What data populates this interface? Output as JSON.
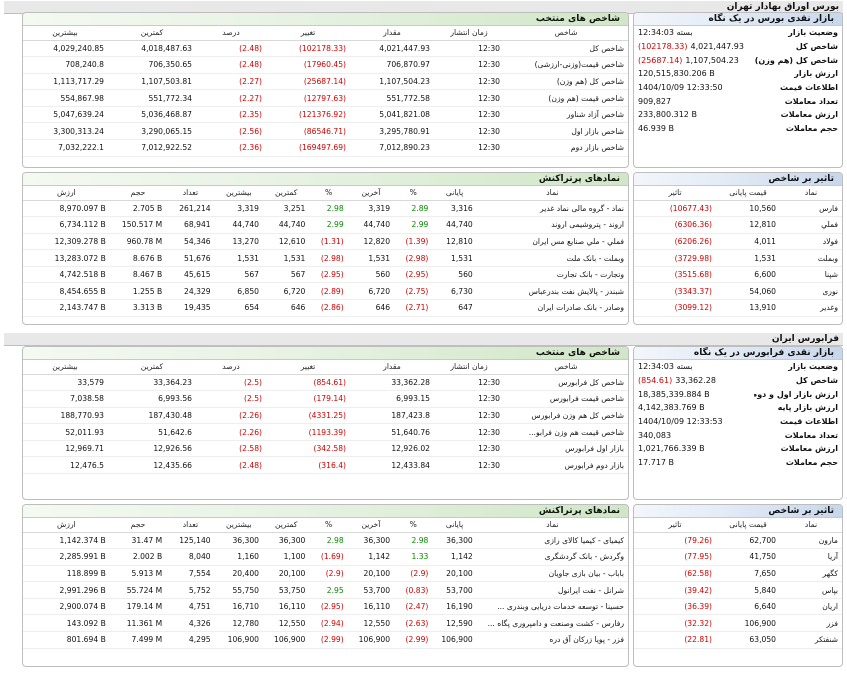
{
  "page_title": "بورس اوراق بهادار تهران",
  "colors": {
    "negative": "#d10000",
    "positive": "#0a8a00",
    "header_green": "#cfe7c6",
    "header_blue": "#c7d7ec"
  },
  "tse": {
    "market_panel": {
      "title": "بازار نقدی بورس در یک نگاه",
      "rows": [
        {
          "label": "وضعیت بازار",
          "value": "بسته 12:34:03",
          "change": ""
        },
        {
          "label": "شاخص کل",
          "value": "4,021,447.93",
          "change": "(102178.33)"
        },
        {
          "label": "شاخص کل (هم وزن)",
          "value": "1,107,504.23",
          "change": "(25687.14)"
        },
        {
          "label": "ارزش بازار",
          "value": "120,515,830.206 B",
          "change": ""
        },
        {
          "label": "اطلاعات قیمت",
          "value": "1404/10/09 12:33:50",
          "change": ""
        },
        {
          "label": "تعداد معاملات",
          "value": "909,827",
          "change": ""
        },
        {
          "label": "ارزش معاملات",
          "value": "233,800.312 B",
          "change": ""
        },
        {
          "label": "حجم معاملات",
          "value": "46.939 B",
          "change": ""
        }
      ]
    },
    "indices": {
      "title": "شاخص های منتخب",
      "columns": [
        "شاخص",
        "زمان انتشار",
        "مقدار",
        "تغییر",
        "درصد",
        "کمترین",
        "بیشترین"
      ],
      "rows": [
        [
          "شاخص کل",
          "12:30",
          "4,021,447.93",
          "(102178.33)",
          "(2.48)",
          "4,018,487.63",
          "4,029,240.85"
        ],
        [
          "شاخص قیمت(وزنی-ارزشی)",
          "12:30",
          "706,870.97",
          "(17960.45)",
          "(2.48)",
          "706,350.65",
          "708,240.8"
        ],
        [
          "شاخص کل (هم وزن)",
          "12:30",
          "1,107,504.23",
          "(25687.14)",
          "(2.27)",
          "1,107,503.81",
          "1,113,717.29"
        ],
        [
          "شاخص قیمت (هم وزن)",
          "12:30",
          "551,772.58",
          "(12797.63)",
          "(2.27)",
          "551,772.34",
          "554,867.98"
        ],
        [
          "شاخص آزاد شناور",
          "12:30",
          "5,041,821.08",
          "(121376.92)",
          "(2.35)",
          "5,036,468.87",
          "5,047,639.24"
        ],
        [
          "شاخص بازار اول",
          "12:30",
          "3,295,780.91",
          "(86546.71)",
          "(2.56)",
          "3,290,065.15",
          "3,300,313.24"
        ],
        [
          "شاخص بازار دوم",
          "12:30",
          "7,012,890.23",
          "(169497.69)",
          "(2.36)",
          "7,012,922.52",
          "7,032,222.1"
        ]
      ]
    },
    "impact": {
      "title": "تاثیر بر شاخص",
      "columns": [
        "نماد",
        "قیمت پایانی",
        "تاثیر"
      ],
      "rows": [
        [
          "فارس",
          "10,560",
          "(10677.43)"
        ],
        [
          "فملي",
          "12,810",
          "(6306.36)"
        ],
        [
          "فولاد",
          "4,011",
          "(6206.26)"
        ],
        [
          "وبملت",
          "1,531",
          "(3729.98)"
        ],
        [
          "شپنا",
          "6,600",
          "(3515.68)"
        ],
        [
          "نوری",
          "54,060",
          "(3343.37)"
        ],
        [
          "وغدير",
          "13,910",
          "(3099.12)"
        ]
      ]
    },
    "active": {
      "title": "نمادهای پرتراکنش",
      "columns": [
        "نماد",
        "پایانی",
        "%",
        "آخرین",
        "%",
        "کمترین",
        "بیشترین",
        "تعداد",
        "حجم",
        "ارزش"
      ],
      "rows": [
        [
          "نماد - گروه مالی نماد غدیر",
          "3,316",
          "2.89",
          "3,319",
          "2.98",
          "3,251",
          "3,319",
          "261,214",
          "2.705 B",
          "8,970.097 B"
        ],
        [
          "اروند - پتروشیمی اروند",
          "44,740",
          "2.99",
          "44,740",
          "2.99",
          "44,740",
          "44,740",
          "68,941",
          "150.517 M",
          "6,734.112 B"
        ],
        [
          "فملي - ملي صنايع مس ايران",
          "12,810",
          "(1.39)",
          "12,820",
          "(1.31)",
          "12,610",
          "13,270",
          "54,346",
          "960.78 M",
          "12,309.278 B"
        ],
        [
          "وبملت - بانک ملت",
          "1,531",
          "(2.98)",
          "1,531",
          "(2.98)",
          "1,531",
          "1,531",
          "51,676",
          "8.676 B",
          "13,283.072 B"
        ],
        [
          "وتجارت - بانک تجارت",
          "560",
          "(2.95)",
          "560",
          "(2.95)",
          "567",
          "567",
          "45,615",
          "8.467 B",
          "4,742.518 B"
        ],
        [
          "شبندر - پالايش نفت بندرعباس",
          "6,730",
          "(2.75)",
          "6,720",
          "(2.89)",
          "6,720",
          "6,850",
          "24,329",
          "1.255 B",
          "8,454.655 B"
        ],
        [
          "وصادر - بانک صادرات ايران",
          "647",
          "(2.71)",
          "646",
          "(2.86)",
          "646",
          "654",
          "19,435",
          "3.313 B",
          "2,143.747 B"
        ]
      ]
    }
  },
  "ifb_bar_title": "فرابورس ایران",
  "ifb": {
    "market_panel": {
      "title": "بازار نقدی فرابورس در یک نگاه",
      "rows": [
        {
          "label": "وضعیت بازار",
          "value": "بسته 12:34:03",
          "change": ""
        },
        {
          "label": "شاخص کل",
          "value": "33,362.28",
          "change": "(854.61)"
        },
        {
          "label": "ارزش بازار اول و دوم",
          "value": "18,385,339.884 B",
          "change": ""
        },
        {
          "label": "ارزش بازار پایه",
          "value": "4,142,383.769 B",
          "change": ""
        },
        {
          "label": "اطلاعات قیمت",
          "value": "1404/10/09 12:33:53",
          "change": ""
        },
        {
          "label": "تعداد معاملات",
          "value": "340,083",
          "change": ""
        },
        {
          "label": "ارزش معاملات",
          "value": "1,021,766.339 B",
          "change": ""
        },
        {
          "label": "حجم معاملات",
          "value": "17.717 B",
          "change": ""
        }
      ]
    },
    "indices": {
      "title": "شاخص های منتخب",
      "columns": [
        "شاخص",
        "زمان انتشار",
        "مقدار",
        "تغییر",
        "درصد",
        "کمترین",
        "بیشترین"
      ],
      "rows": [
        [
          "شاخص کل فرابورس",
          "12:30",
          "33,362.28",
          "(854.61)",
          "(2.5)",
          "33,364.23",
          "33,579"
        ],
        [
          "شاخص قیمت فرابورس",
          "12:30",
          "6,993.15",
          "(179.14)",
          "(2.5)",
          "6,993.56",
          "7,038.58"
        ],
        [
          "شاخص کل هم وزن فرابورس",
          "12:30",
          "187,423.8",
          "(4331.25)",
          "(2.26)",
          "187,430.48",
          "188,770.93"
        ],
        [
          "شاخص قیمت هم وزن فرابو...",
          "12:30",
          "51,640.76",
          "(1193.39)",
          "(2.26)",
          "51,642.6",
          "52,011.93"
        ],
        [
          "بازار اول فرابورس",
          "12:30",
          "12,926.02",
          "(342.58)",
          "(2.58)",
          "12,926.56",
          "12,969.71"
        ],
        [
          "بازار دوم فرابورس",
          "12:30",
          "12,433.84",
          "(316.4)",
          "(2.48)",
          "12,435.66",
          "12,476.5"
        ]
      ]
    },
    "impact": {
      "title": "تاثیر بر شاخص",
      "columns": [
        "نماد",
        "قیمت پایانی",
        "تاثیر"
      ],
      "rows": [
        [
          "مارون",
          "62,700",
          "(79.26)"
        ],
        [
          "آريا",
          "41,750",
          "(77.95)"
        ],
        [
          "کگهر",
          "7,650",
          "(62.58)"
        ],
        [
          "بپاس",
          "5,840",
          "(39.42)"
        ],
        [
          "اريان",
          "6,640",
          "(36.39)"
        ],
        [
          "فزر",
          "106,900",
          "(32.32)"
        ],
        [
          "شنفتکر",
          "63,050",
          "(22.81)"
        ]
      ]
    },
    "active": {
      "title": "نمادهای پرتراکنش",
      "columns": [
        "نماد",
        "پایانی",
        "%",
        "آخرین",
        "%",
        "کمترین",
        "بیشترین",
        "تعداد",
        "حجم",
        "ارزش"
      ],
      "rows": [
        [
          "کیمیای - کیمیا کالای رازی",
          "36,300",
          "2.98",
          "36,300",
          "2.98",
          "36,300",
          "36,300",
          "125,140",
          "31.47 M",
          "1,142.374 B"
        ],
        [
          "وگردش - بانک گردشگری",
          "1,142",
          "1.33",
          "1,142",
          "(1.69)",
          "1,100",
          "1,160",
          "8,040",
          "2.002 B",
          "2,285.991 B"
        ],
        [
          "باباب - بیان بازی جاویان",
          "20,100",
          "(2.9)",
          "20,100",
          "(2.9)",
          "20,100",
          "20,400",
          "7,554",
          "5.913 M",
          "118.899 B"
        ],
        [
          "شرانل - نفت ایرانول",
          "53,700",
          "(0.83)",
          "53,700",
          "2.95",
          "53,750",
          "55,750",
          "5,752",
          "55.724 M",
          "2,991.296 B"
        ],
        [
          "حسینا - توسعه خدمات دریایی وبندری ...",
          "16,190",
          "(2.47)",
          "16,110",
          "(2.95)",
          "16,110",
          "16,710",
          "4,751",
          "179.14 M",
          "2,900.074 B"
        ],
        [
          "رفارس - کشت وصنعت و دامپروری پگاه ...",
          "12,590",
          "(2.63)",
          "12,550",
          "(2.94)",
          "12,550",
          "12,780",
          "4,326",
          "11.361 M",
          "143.092 B"
        ],
        [
          "فزر - پویا زرکان آق دره",
          "106,900",
          "(2.99)",
          "106,900",
          "(2.99)",
          "106,900",
          "106,900",
          "4,295",
          "7.499 M",
          "801.694 B"
        ]
      ]
    }
  }
}
